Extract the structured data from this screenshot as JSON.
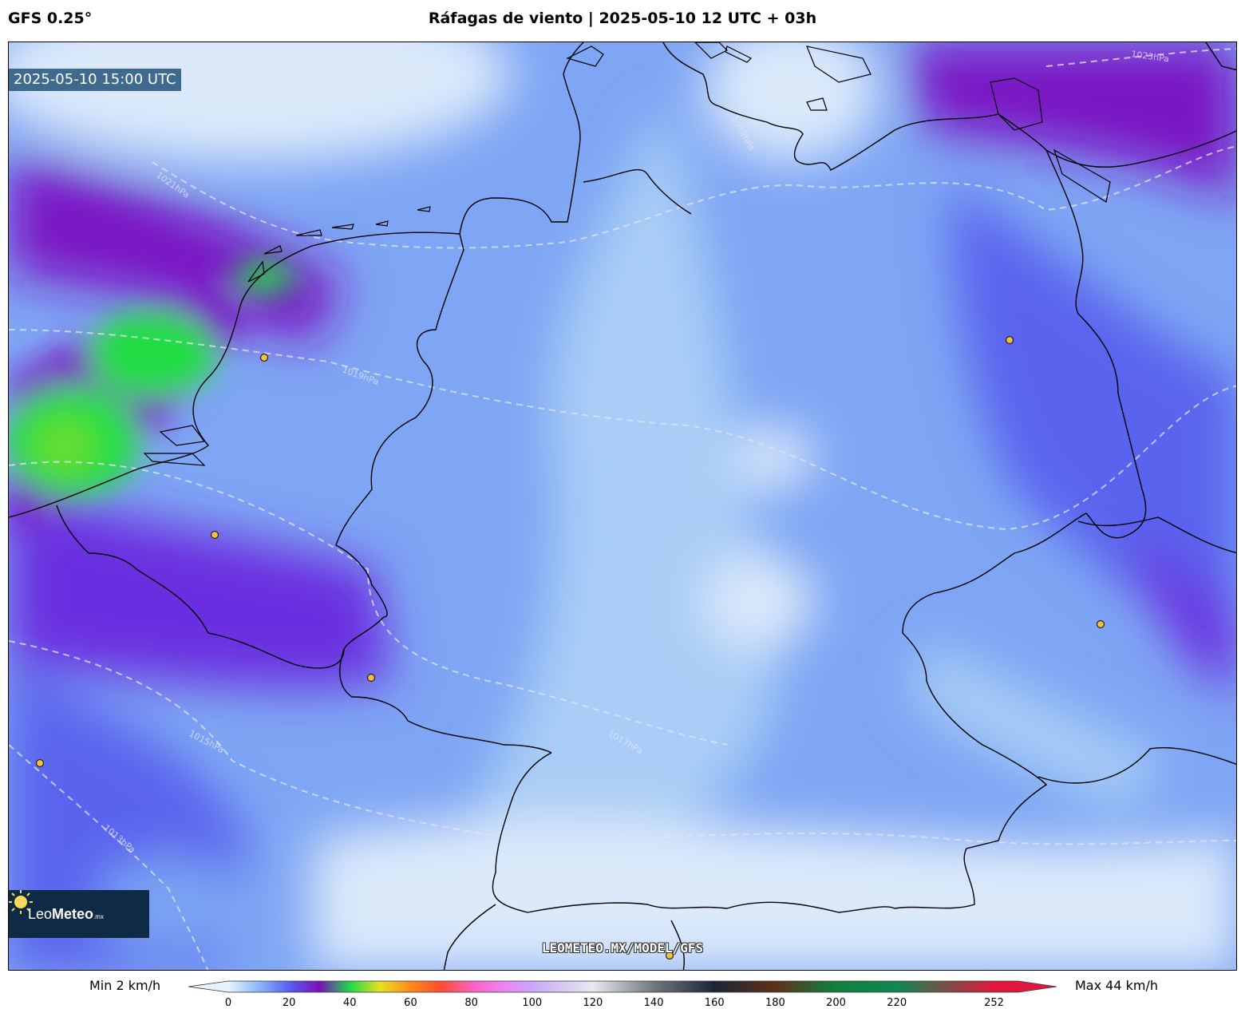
{
  "header": {
    "model": "GFS 0.25°",
    "title": "Ráfagas de viento | 2025-05-10 12 UTC + 03h"
  },
  "map": {
    "valid_time": "2025-05-10 15:00 UTC",
    "watermark": "LEOMETEO.MX/MODEL/GFS",
    "isobar_labels": [
      "1023hPa",
      "1021hPa",
      "1019hPa",
      "1017hPa",
      "1015hPa",
      "1013hPa",
      "1019hPa"
    ],
    "colors": {
      "land_pale": "#dbe9fb",
      "light_blue": "#a9cdf6",
      "mid_blue": "#7aa4f3",
      "blue_violet": "#5a64ee",
      "violet": "#6a2ee0",
      "purple": "#7a16c4",
      "green": "#22dd44",
      "lime": "#66dd33",
      "border": "#000000",
      "isobar": "#e4e4f4",
      "city_marker": "#f0c040"
    }
  },
  "logo": {
    "brand_light": "Leo",
    "brand_bold": "Meteo",
    "suffix": ".mx"
  },
  "legend": {
    "min_label": "Min 2 km/h",
    "max_label": "Max 44 km/h",
    "ticks": [
      "0",
      "20",
      "40",
      "60",
      "80",
      "100",
      "120",
      "140",
      "160",
      "180",
      "200",
      "220",
      "252"
    ],
    "tick_values": [
      0,
      20,
      40,
      60,
      80,
      100,
      120,
      140,
      160,
      180,
      200,
      220,
      252
    ],
    "range": [
      0,
      260
    ],
    "unit": "km/h",
    "stops": [
      {
        "v": 0,
        "c": "#e6f2fd"
      },
      {
        "v": 10,
        "c": "#8cb8f6"
      },
      {
        "v": 20,
        "c": "#5a5ef0"
      },
      {
        "v": 30,
        "c": "#7a10b8"
      },
      {
        "v": 40,
        "c": "#20d84a"
      },
      {
        "v": 50,
        "c": "#e8e020"
      },
      {
        "v": 60,
        "c": "#ff8a1a"
      },
      {
        "v": 70,
        "c": "#ff4c30"
      },
      {
        "v": 80,
        "c": "#ff60c0"
      },
      {
        "v": 90,
        "c": "#f080f0"
      },
      {
        "v": 100,
        "c": "#c8a8f8"
      },
      {
        "v": 120,
        "c": "#e8e8f0"
      },
      {
        "v": 140,
        "c": "#707880"
      },
      {
        "v": 160,
        "c": "#1a2638"
      },
      {
        "v": 180,
        "c": "#603018"
      },
      {
        "v": 200,
        "c": "#108040"
      },
      {
        "v": 220,
        "c": "#108850"
      },
      {
        "v": 252,
        "c": "#e01840"
      }
    ]
  }
}
